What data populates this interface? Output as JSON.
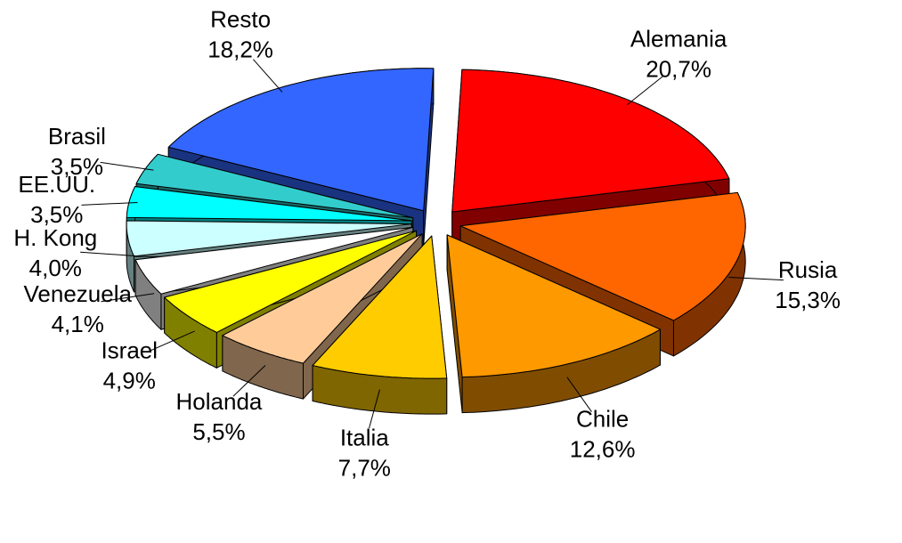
{
  "chart_data": {
    "type": "pie",
    "categories": [
      "Alemania",
      "Rusia",
      "Chile",
      "Italia",
      "Holanda",
      "Israel",
      "Venezuela",
      "H. Kong",
      "EE.UU.",
      "Brasil",
      "Resto"
    ],
    "values": [
      20.7,
      15.3,
      12.6,
      7.7,
      5.5,
      4.9,
      4.1,
      4.0,
      3.5,
      3.5,
      18.2
    ],
    "value_labels": [
      "20,7%",
      "15,3%",
      "12,6%",
      "7,7%",
      "5,5%",
      "4,9%",
      "4,1%",
      "4,0%",
      "3,5%",
      "3,5%",
      "18,2%"
    ],
    "colors": [
      "#ff0000",
      "#ff6600",
      "#ff9900",
      "#ffcc00",
      "#ffcc99",
      "#ffff00",
      "#ffffff",
      "#ccffff",
      "#00ffff",
      "#33cccc",
      "#3366ff"
    ]
  }
}
